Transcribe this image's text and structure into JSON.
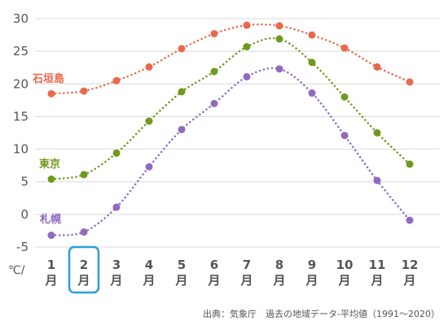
{
  "chart_data": {
    "type": "line",
    "categories": [
      "1",
      "2",
      "3",
      "4",
      "5",
      "6",
      "7",
      "8",
      "9",
      "10",
      "11",
      "12"
    ],
    "category_suffix": "月",
    "ylim": [
      -5,
      30
    ],
    "yticks": [
      -5,
      0,
      5,
      10,
      15,
      20,
      25,
      30
    ],
    "unit_label": "℃/",
    "grid": "horizontal",
    "highlighted_category": "2",
    "series": [
      {
        "name": "石垣島",
        "color": "#e8694a",
        "values": [
          18.5,
          18.9,
          20.5,
          22.6,
          25.4,
          27.7,
          29.0,
          28.9,
          27.5,
          25.5,
          22.6,
          20.3
        ]
      },
      {
        "name": "東京",
        "color": "#6f9a1d",
        "values": [
          5.4,
          6.1,
          9.4,
          14.3,
          18.8,
          21.9,
          25.7,
          26.9,
          23.3,
          18.0,
          12.5,
          7.7
        ]
      },
      {
        "name": "札幌",
        "color": "#8e6bbf",
        "values": [
          -3.2,
          -2.7,
          1.1,
          7.3,
          13.0,
          17.0,
          21.1,
          22.3,
          18.6,
          12.1,
          5.2,
          -0.9
        ]
      }
    ],
    "source_note": "出典：気象庁　過去の地域データ-平均値（1991～2020）"
  },
  "highlight_color": "#2a9fd6"
}
